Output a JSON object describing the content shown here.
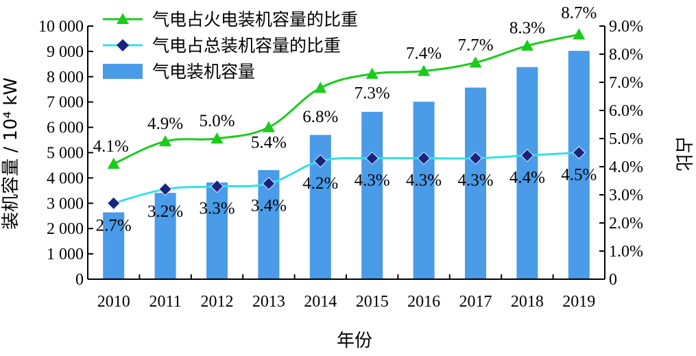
{
  "chart_data": {
    "type": "bar+line",
    "categories": [
      "2010",
      "2011",
      "2012",
      "2013",
      "2014",
      "2015",
      "2016",
      "2017",
      "2018",
      "2019"
    ],
    "xlabel": "年份",
    "ylabel_left": "装机容量 / 10⁴ kW",
    "ylabel_right": "占比",
    "ylim_left": [
      0,
      10000
    ],
    "ylim_right": [
      0,
      9.0
    ],
    "yticks_left": [
      "0",
      "1 000",
      "2 000",
      "3 000",
      "4 000",
      "5 000",
      "6 000",
      "7 000",
      "8 000",
      "9 000",
      "10 000"
    ],
    "yticks_right": [
      "0",
      "1.0%",
      "2.0%",
      "3.0%",
      "4.0%",
      "5.0%",
      "6.0%",
      "7.0%",
      "8.0%",
      "9.0%"
    ],
    "grid": false,
    "legend_position": "top-left",
    "bars": {
      "name": "气电装机容量",
      "axis": "left",
      "color": "#4a9be8",
      "values": [
        2640,
        3410,
        3820,
        4310,
        5700,
        6610,
        7010,
        7570,
        8380,
        9020
      ]
    },
    "series": [
      {
        "name": "气电占火电装机容量的比重",
        "axis": "right",
        "color": "#19cc19",
        "marker": "triangle",
        "values": [
          4.1,
          4.9,
          5.0,
          5.4,
          6.8,
          7.3,
          7.4,
          7.7,
          8.3,
          8.7
        ],
        "labels": [
          "4.1%",
          "4.9%",
          "5.0%",
          "5.4%",
          "6.8%",
          "7.3%",
          "7.4%",
          "7.7%",
          "8.3%",
          "8.7%"
        ]
      },
      {
        "name": "气电占总装机容量的比重",
        "axis": "right",
        "color": "#33e0e6",
        "marker": "diamond",
        "marker_color": "#1a237e",
        "values": [
          2.7,
          3.2,
          3.3,
          3.4,
          4.2,
          4.3,
          4.3,
          4.3,
          4.4,
          4.5
        ],
        "labels": [
          "2.7%",
          "3.2%",
          "3.3%",
          "3.4%",
          "4.2%",
          "4.3%",
          "4.3%",
          "4.3%",
          "4.4%",
          "4.5%"
        ]
      }
    ]
  }
}
